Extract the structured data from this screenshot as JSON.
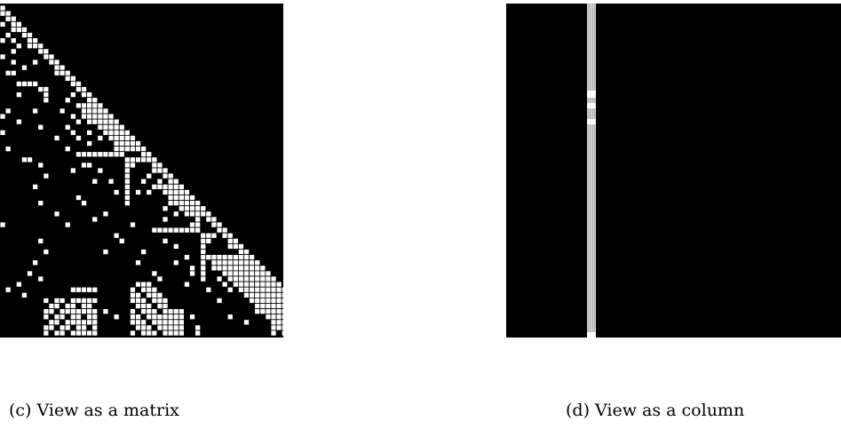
{
  "figure": {
    "panels": [
      {
        "label": "(c)",
        "caption": "View as a matrix",
        "colors": {
          "background": "#000000",
          "cell": "#ffffff",
          "grid": "#000000"
        }
      },
      {
        "label": "(d)",
        "caption": "View as a column",
        "colors": {
          "background": "#000000",
          "column": "#d9d9d9",
          "cell": "#ffffff"
        }
      }
    ]
  }
}
